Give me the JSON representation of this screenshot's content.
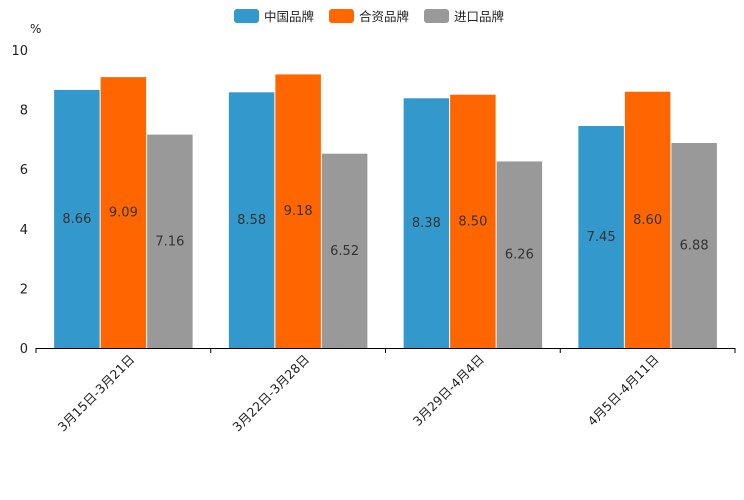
{
  "chart_data": {
    "type": "bar",
    "title": "",
    "xlabel": "",
    "ylabel": "%",
    "ylim": [
      0,
      10
    ],
    "yticks": [
      0,
      2,
      4,
      6,
      8,
      10
    ],
    "grid": false,
    "legend_position": "top-center",
    "categories": [
      "3月15日-3月21日",
      "3月22日-3月28日",
      "3月29日-4月4日",
      "4月5日-4月11日"
    ],
    "series": [
      {
        "name": "中国品牌",
        "color": "#3399cc",
        "values": [
          8.66,
          8.58,
          8.38,
          7.45
        ]
      },
      {
        "name": "合资品牌",
        "color": "#ff6600",
        "values": [
          9.09,
          9.18,
          8.5,
          8.6
        ]
      },
      {
        "name": "进口品牌",
        "color": "#999999",
        "values": [
          7.16,
          6.52,
          6.26,
          6.88
        ]
      }
    ]
  }
}
